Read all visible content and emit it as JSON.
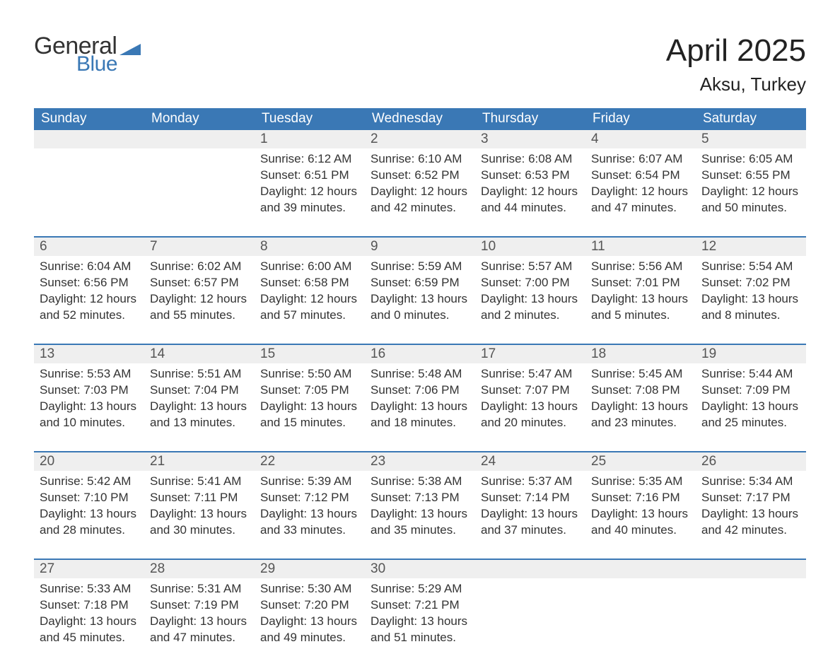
{
  "brand": {
    "word1": "General",
    "word2": "Blue",
    "accent_color": "#3a78b5"
  },
  "title": "April 2025",
  "location": "Aksu, Turkey",
  "colors": {
    "header_bg": "#3a78b5",
    "header_text": "#ffffff",
    "daynum_bg": "#efefef",
    "text": "#333333",
    "page_bg": "#ffffff"
  },
  "fonts": {
    "base_family": "Arial",
    "title_size_pt": 33,
    "location_size_pt": 20,
    "dow_size_pt": 14,
    "body_size_pt": 13
  },
  "days_of_week": [
    "Sunday",
    "Monday",
    "Tuesday",
    "Wednesday",
    "Thursday",
    "Friday",
    "Saturday"
  ],
  "weeks": [
    [
      null,
      null,
      {
        "n": "1",
        "sunrise": "Sunrise: 6:12 AM",
        "sunset": "Sunset: 6:51 PM",
        "day1": "Daylight: 12 hours",
        "day2": "and 39 minutes."
      },
      {
        "n": "2",
        "sunrise": "Sunrise: 6:10 AM",
        "sunset": "Sunset: 6:52 PM",
        "day1": "Daylight: 12 hours",
        "day2": "and 42 minutes."
      },
      {
        "n": "3",
        "sunrise": "Sunrise: 6:08 AM",
        "sunset": "Sunset: 6:53 PM",
        "day1": "Daylight: 12 hours",
        "day2": "and 44 minutes."
      },
      {
        "n": "4",
        "sunrise": "Sunrise: 6:07 AM",
        "sunset": "Sunset: 6:54 PM",
        "day1": "Daylight: 12 hours",
        "day2": "and 47 minutes."
      },
      {
        "n": "5",
        "sunrise": "Sunrise: 6:05 AM",
        "sunset": "Sunset: 6:55 PM",
        "day1": "Daylight: 12 hours",
        "day2": "and 50 minutes."
      }
    ],
    [
      {
        "n": "6",
        "sunrise": "Sunrise: 6:04 AM",
        "sunset": "Sunset: 6:56 PM",
        "day1": "Daylight: 12 hours",
        "day2": "and 52 minutes."
      },
      {
        "n": "7",
        "sunrise": "Sunrise: 6:02 AM",
        "sunset": "Sunset: 6:57 PM",
        "day1": "Daylight: 12 hours",
        "day2": "and 55 minutes."
      },
      {
        "n": "8",
        "sunrise": "Sunrise: 6:00 AM",
        "sunset": "Sunset: 6:58 PM",
        "day1": "Daylight: 12 hours",
        "day2": "and 57 minutes."
      },
      {
        "n": "9",
        "sunrise": "Sunrise: 5:59 AM",
        "sunset": "Sunset: 6:59 PM",
        "day1": "Daylight: 13 hours",
        "day2": "and 0 minutes."
      },
      {
        "n": "10",
        "sunrise": "Sunrise: 5:57 AM",
        "sunset": "Sunset: 7:00 PM",
        "day1": "Daylight: 13 hours",
        "day2": "and 2 minutes."
      },
      {
        "n": "11",
        "sunrise": "Sunrise: 5:56 AM",
        "sunset": "Sunset: 7:01 PM",
        "day1": "Daylight: 13 hours",
        "day2": "and 5 minutes."
      },
      {
        "n": "12",
        "sunrise": "Sunrise: 5:54 AM",
        "sunset": "Sunset: 7:02 PM",
        "day1": "Daylight: 13 hours",
        "day2": "and 8 minutes."
      }
    ],
    [
      {
        "n": "13",
        "sunrise": "Sunrise: 5:53 AM",
        "sunset": "Sunset: 7:03 PM",
        "day1": "Daylight: 13 hours",
        "day2": "and 10 minutes."
      },
      {
        "n": "14",
        "sunrise": "Sunrise: 5:51 AM",
        "sunset": "Sunset: 7:04 PM",
        "day1": "Daylight: 13 hours",
        "day2": "and 13 minutes."
      },
      {
        "n": "15",
        "sunrise": "Sunrise: 5:50 AM",
        "sunset": "Sunset: 7:05 PM",
        "day1": "Daylight: 13 hours",
        "day2": "and 15 minutes."
      },
      {
        "n": "16",
        "sunrise": "Sunrise: 5:48 AM",
        "sunset": "Sunset: 7:06 PM",
        "day1": "Daylight: 13 hours",
        "day2": "and 18 minutes."
      },
      {
        "n": "17",
        "sunrise": "Sunrise: 5:47 AM",
        "sunset": "Sunset: 7:07 PM",
        "day1": "Daylight: 13 hours",
        "day2": "and 20 minutes."
      },
      {
        "n": "18",
        "sunrise": "Sunrise: 5:45 AM",
        "sunset": "Sunset: 7:08 PM",
        "day1": "Daylight: 13 hours",
        "day2": "and 23 minutes."
      },
      {
        "n": "19",
        "sunrise": "Sunrise: 5:44 AM",
        "sunset": "Sunset: 7:09 PM",
        "day1": "Daylight: 13 hours",
        "day2": "and 25 minutes."
      }
    ],
    [
      {
        "n": "20",
        "sunrise": "Sunrise: 5:42 AM",
        "sunset": "Sunset: 7:10 PM",
        "day1": "Daylight: 13 hours",
        "day2": "and 28 minutes."
      },
      {
        "n": "21",
        "sunrise": "Sunrise: 5:41 AM",
        "sunset": "Sunset: 7:11 PM",
        "day1": "Daylight: 13 hours",
        "day2": "and 30 minutes."
      },
      {
        "n": "22",
        "sunrise": "Sunrise: 5:39 AM",
        "sunset": "Sunset: 7:12 PM",
        "day1": "Daylight: 13 hours",
        "day2": "and 33 minutes."
      },
      {
        "n": "23",
        "sunrise": "Sunrise: 5:38 AM",
        "sunset": "Sunset: 7:13 PM",
        "day1": "Daylight: 13 hours",
        "day2": "and 35 minutes."
      },
      {
        "n": "24",
        "sunrise": "Sunrise: 5:37 AM",
        "sunset": "Sunset: 7:14 PM",
        "day1": "Daylight: 13 hours",
        "day2": "and 37 minutes."
      },
      {
        "n": "25",
        "sunrise": "Sunrise: 5:35 AM",
        "sunset": "Sunset: 7:16 PM",
        "day1": "Daylight: 13 hours",
        "day2": "and 40 minutes."
      },
      {
        "n": "26",
        "sunrise": "Sunrise: 5:34 AM",
        "sunset": "Sunset: 7:17 PM",
        "day1": "Daylight: 13 hours",
        "day2": "and 42 minutes."
      }
    ],
    [
      {
        "n": "27",
        "sunrise": "Sunrise: 5:33 AM",
        "sunset": "Sunset: 7:18 PM",
        "day1": "Daylight: 13 hours",
        "day2": "and 45 minutes."
      },
      {
        "n": "28",
        "sunrise": "Sunrise: 5:31 AM",
        "sunset": "Sunset: 7:19 PM",
        "day1": "Daylight: 13 hours",
        "day2": "and 47 minutes."
      },
      {
        "n": "29",
        "sunrise": "Sunrise: 5:30 AM",
        "sunset": "Sunset: 7:20 PM",
        "day1": "Daylight: 13 hours",
        "day2": "and 49 minutes."
      },
      {
        "n": "30",
        "sunrise": "Sunrise: 5:29 AM",
        "sunset": "Sunset: 7:21 PM",
        "day1": "Daylight: 13 hours",
        "day2": "and 51 minutes."
      },
      null,
      null,
      null
    ]
  ]
}
